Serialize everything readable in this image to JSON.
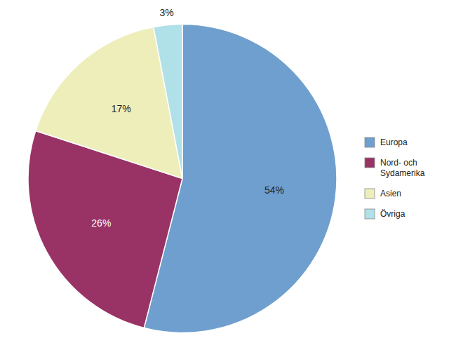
{
  "chart_data": {
    "type": "pie",
    "categories": [
      "Europa",
      "Nord- och\nSydamerika",
      "Asien",
      "Övriga"
    ],
    "values": [
      54,
      26,
      17,
      3
    ],
    "value_labels": [
      "54%",
      "26%",
      "17%",
      "3%"
    ],
    "colors": [
      "#6F9FCE",
      "#993366",
      "#EEEEBB",
      "#B0E0E8"
    ],
    "data_labels": true,
    "legend": "right"
  }
}
